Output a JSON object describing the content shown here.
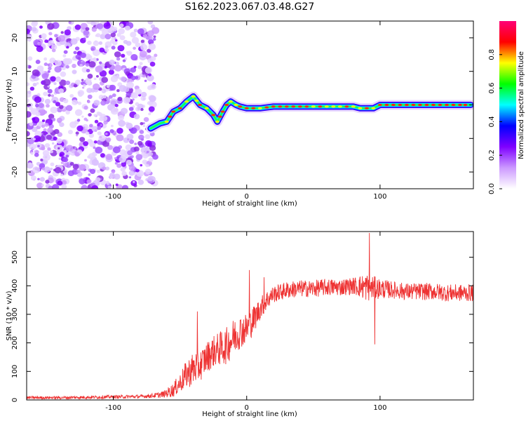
{
  "chart_data": [
    {
      "type": "heatmap",
      "title": "S162.2023.067.03.48.G27",
      "xlabel": "Height of straight line (km)",
      "ylabel": "Frequency (Hz)",
      "xlim": [
        -165,
        170
      ],
      "ylim": [
        -25,
        25
      ],
      "x_ticks": [
        -100,
        0,
        100
      ],
      "y_ticks": [
        -20,
        -10,
        0,
        10,
        20
      ],
      "grid": false,
      "colorbar": {
        "label": "Normalized spectral amplitude",
        "range": [
          0,
          1
        ],
        "ticks": [
          0.0,
          0.2,
          0.4,
          0.6,
          0.8
        ],
        "colormap": [
          "#ffffff",
          "#cc99ff",
          "#7f00ff",
          "#0000ff",
          "#00ffff",
          "#00ff00",
          "#ffff00",
          "#ff0000",
          "#ff0077"
        ]
      },
      "noise_region": {
        "x_range": [
          -165,
          -68
        ],
        "y_range": [
          -25,
          25
        ]
      },
      "signal_track": {
        "x": [
          -72,
          -65,
          -60,
          -55,
          -50,
          -45,
          -40,
          -35,
          -30,
          -25,
          -22,
          -18,
          -15,
          -12,
          -8,
          -5,
          0,
          10,
          20,
          30,
          40,
          50,
          60,
          70,
          80,
          85,
          90,
          95,
          100,
          110,
          120,
          130,
          140,
          150,
          160,
          168
        ],
        "y": [
          -7,
          -5.5,
          -5,
          -2,
          -1,
          1,
          2.5,
          0,
          -1,
          -3,
          -5,
          -2,
          0,
          1,
          0,
          -0.5,
          -1,
          -1,
          -0.5,
          -0.5,
          -0.5,
          -0.5,
          -0.5,
          -0.5,
          -0.5,
          -1,
          -1,
          -1,
          0,
          0,
          0,
          0,
          0,
          0,
          0,
          0
        ]
      }
    },
    {
      "type": "line",
      "title": "",
      "xlabel": "Height of straight line (km)",
      "ylabel": "SNR (10 * v/v)",
      "xlim": [
        -165,
        170
      ],
      "ylim": [
        0,
        590
      ],
      "x_ticks": [
        -100,
        0,
        100
      ],
      "y_ticks": [
        0,
        100,
        200,
        300,
        400,
        500
      ],
      "grid": false,
      "line_color": "#ee3333",
      "envelope": {
        "x": [
          -165,
          -140,
          -110,
          -80,
          -70,
          -62,
          -55,
          -50,
          -45,
          -40,
          -35,
          -30,
          -25,
          -20,
          -15,
          -10,
          -5,
          0,
          5,
          10,
          15,
          20,
          30,
          40,
          50,
          60,
          70,
          80,
          90,
          100,
          110,
          120,
          130,
          140,
          150,
          160,
          170
        ],
        "mean": [
          8,
          8,
          10,
          12,
          15,
          20,
          35,
          60,
          90,
          110,
          120,
          150,
          170,
          180,
          190,
          220,
          240,
          250,
          280,
          320,
          350,
          370,
          385,
          390,
          390,
          395,
          395,
          400,
          395,
          390,
          385,
          380,
          380,
          380,
          375,
          375,
          375
        ],
        "amp": [
          5,
          5,
          6,
          6,
          8,
          12,
          25,
          35,
          50,
          60,
          55,
          55,
          55,
          60,
          65,
          65,
          60,
          55,
          50,
          40,
          35,
          30,
          30,
          30,
          30,
          30,
          30,
          30,
          50,
          35,
          30,
          30,
          30,
          30,
          30,
          30,
          30
        ]
      },
      "spikes": [
        {
          "x": -37,
          "y": 310
        },
        {
          "x": 2,
          "y": 455
        },
        {
          "x": 92,
          "y": 585
        },
        {
          "x": 96,
          "y": 195
        },
        {
          "x": 13,
          "y": 430
        }
      ]
    }
  ]
}
